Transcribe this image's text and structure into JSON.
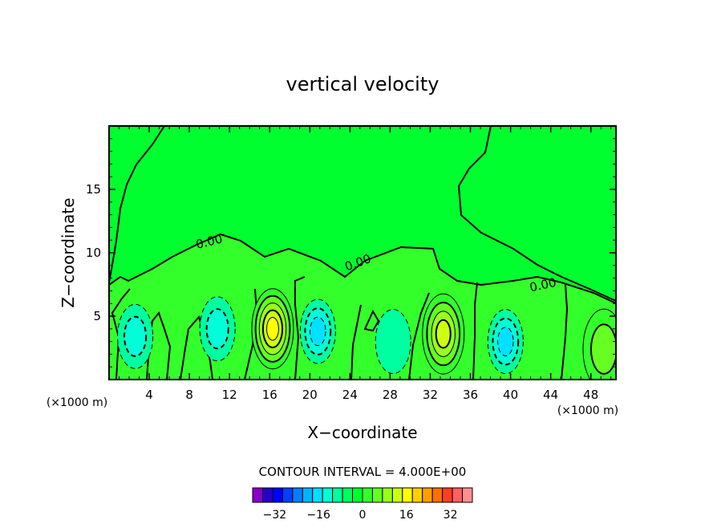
{
  "chart_data": {
    "type": "contour",
    "title": "vertical velocity",
    "xlabel": "X−coordinate",
    "ylabel": "Z−coordinate",
    "x_unit": "(×1000 m)",
    "y_unit": "(×1000 m)",
    "xlim": [
      0,
      50.5
    ],
    "ylim": [
      0,
      20
    ],
    "x_ticks": [
      4,
      8,
      12,
      16,
      20,
      24,
      28,
      32,
      36,
      40,
      44,
      48
    ],
    "x_tick_labels": [
      "4",
      "8",
      "12",
      "16",
      "20",
      "24",
      "28",
      "32",
      "36",
      "40",
      "44",
      "48"
    ],
    "y_ticks": [
      5,
      10,
      15
    ],
    "y_tick_labels": [
      "5",
      "10",
      "15"
    ],
    "zero_contour_label": "0.00",
    "contour_interval_text": "CONTOUR INTERVAL = 4.000E+00",
    "background_level_color": "#00ff2e",
    "above_zero_color": "#33ff2a",
    "colorbar": {
      "levels_min": -40,
      "levels_max": 40,
      "step": 4,
      "tick_values": [
        -32,
        -16,
        0,
        16,
        32
      ],
      "tick_labels": [
        "−32",
        "−16",
        "0",
        "16",
        "32"
      ],
      "colors": [
        "#8a00c8",
        "#2a00c8",
        "#0000ff",
        "#0040ff",
        "#0080ff",
        "#00b4ff",
        "#00e0ff",
        "#00ffd8",
        "#00ffa0",
        "#00ff60",
        "#00ff2e",
        "#33ff2a",
        "#66ff22",
        "#99ff1a",
        "#ccff10",
        "#ffff00",
        "#ffd000",
        "#ffa000",
        "#ff7000",
        "#ff4020",
        "#ff6060",
        "#ff9090"
      ]
    },
    "cells": [
      {
        "x": 16.3,
        "z": 4.0,
        "peak": 20,
        "kind": "updraft"
      },
      {
        "x": 33.3,
        "z": 3.6,
        "peak": 18,
        "kind": "updraft"
      },
      {
        "x": 49.3,
        "z": 2.4,
        "peak": 10,
        "kind": "updraft"
      },
      {
        "x": 2.6,
        "z": 3.4,
        "peak": -10,
        "kind": "downdraft"
      },
      {
        "x": 10.8,
        "z": 4.0,
        "peak": -9,
        "kind": "downdraft"
      },
      {
        "x": 20.8,
        "z": 3.8,
        "peak": -12,
        "kind": "downdraft"
      },
      {
        "x": 28.3,
        "z": 3.0,
        "peak": -6,
        "kind": "downdraft"
      },
      {
        "x": 39.5,
        "z": 3.0,
        "peak": -14,
        "kind": "downdraft"
      }
    ]
  }
}
